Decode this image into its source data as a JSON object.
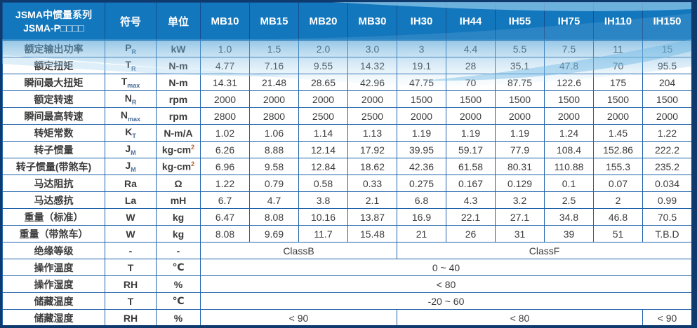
{
  "colors": {
    "header_bg": "#1377bd",
    "grid_line": "#1e62a9",
    "outer_border": "#0e3a6d",
    "header_text": "#ffffff",
    "body_text": "#3b3b3b",
    "wave_accent": "#7cbfe4"
  },
  "table": {
    "header": {
      "title_line1": "JSMA中惯量系列",
      "title_line2": "JSMA-P□□□□",
      "symbol": "符号",
      "unit": "单位",
      "models": [
        "MB10",
        "MB15",
        "MB20",
        "MB30",
        "IH30",
        "IH44",
        "IH55",
        "IH75",
        "IH110",
        "IH150"
      ]
    },
    "rows": [
      {
        "label": "额定输出功率",
        "sym": {
          "main": "P",
          "sub": "R"
        },
        "unit": "kW",
        "values": [
          "1.0",
          "1.5",
          "2.0",
          "3.0",
          "3",
          "4.4",
          "5.5",
          "7.5",
          "11",
          "15"
        ]
      },
      {
        "label": "额定扭矩",
        "sym": {
          "main": "T",
          "sub": "R"
        },
        "unit": "N-m",
        "values": [
          "4.77",
          "7.16",
          "9.55",
          "14.32",
          "19.1",
          "28",
          "35.1",
          "47.8",
          "70",
          "95.5"
        ]
      },
      {
        "label": "瞬间最大扭矩",
        "sym": {
          "main": "T",
          "sub": "max"
        },
        "unit": "N-m",
        "values": [
          "14.31",
          "21.48",
          "28.65",
          "42.96",
          "47.75",
          "70",
          "87.75",
          "122.6",
          "175",
          "204"
        ]
      },
      {
        "label": "额定转速",
        "sym": {
          "main": "N",
          "sub": "R"
        },
        "unit": "rpm",
        "values": [
          "2000",
          "2000",
          "2000",
          "2000",
          "1500",
          "1500",
          "1500",
          "1500",
          "1500",
          "1500"
        ]
      },
      {
        "label": "瞬间最高转速",
        "sym": {
          "main": "N",
          "sub": "max"
        },
        "unit": "rpm",
        "values": [
          "2800",
          "2800",
          "2500",
          "2500",
          "2000",
          "2000",
          "2000",
          "2000",
          "2000",
          "2000"
        ]
      },
      {
        "label": "转矩常数",
        "sym": {
          "main": "K",
          "sub": "T"
        },
        "unit": "N-m/A",
        "values": [
          "1.02",
          "1.06",
          "1.14",
          "1.13",
          "1.19",
          "1.19",
          "1.19",
          "1.24",
          "1.45",
          "1.22"
        ]
      },
      {
        "label": "转子惯量",
        "sym": {
          "main": "J",
          "sub": "M"
        },
        "unit": "kg-cm²",
        "values": [
          "6.26",
          "8.88",
          "12.14",
          "17.92",
          "39.95",
          "59.17",
          "77.9",
          "108.4",
          "152.86",
          "222.2"
        ]
      },
      {
        "label": "转子惯量(带煞车)",
        "sym": {
          "main": "J",
          "sub": "M"
        },
        "unit": "kg-cm²",
        "values": [
          "6.96",
          "9.58",
          "12.84",
          "18.62",
          "42.36",
          "61.58",
          "80.31",
          "110.88",
          "155.3",
          "235.2"
        ]
      },
      {
        "label": "马达阻抗",
        "sym": {
          "main": "Ra",
          "sub": ""
        },
        "unit": "Ω",
        "values": [
          "1.22",
          "0.79",
          "0.58",
          "0.33",
          "0.275",
          "0.167",
          "0.129",
          "0.1",
          "0.07",
          "0.034"
        ]
      },
      {
        "label": "马达感抗",
        "sym": {
          "main": "La",
          "sub": ""
        },
        "unit": "mH",
        "values": [
          "6.7",
          "4.7",
          "3.8",
          "2.1",
          "6.8",
          "4.3",
          "3.2",
          "2.5",
          "2",
          "0.99"
        ]
      },
      {
        "label": "重量（标准）",
        "sym": {
          "main": "W",
          "sub": ""
        },
        "unit": "kg",
        "values": [
          "6.47",
          "8.08",
          "10.16",
          "13.87",
          "16.9",
          "22.1",
          "27.1",
          "34.8",
          "46.8",
          "70.5"
        ]
      },
      {
        "label": "重量（带煞车）",
        "sym": {
          "main": "W",
          "sub": ""
        },
        "unit": "kg",
        "values": [
          "8.08",
          "9.69",
          "11.7",
          "15.48",
          "21",
          "26",
          "31",
          "39",
          "51",
          "T.B.D"
        ]
      },
      {
        "label": "绝缘等级",
        "sym": {
          "main": "-",
          "sub": ""
        },
        "unit": "-",
        "spans": [
          {
            "text": "ClassB",
            "cols": 4
          },
          {
            "text": "ClassF",
            "cols": 6
          }
        ]
      },
      {
        "label": "操作温度",
        "sym": {
          "main": "T",
          "sub": ""
        },
        "unit": "℃",
        "spans": [
          {
            "text": "0 ~ 40",
            "cols": 10
          }
        ]
      },
      {
        "label": "操作湿度",
        "sym": {
          "main": "RH",
          "sub": ""
        },
        "unit": "%",
        "spans": [
          {
            "text": "< 80",
            "cols": 10
          }
        ]
      },
      {
        "label": "储藏温度",
        "sym": {
          "main": "T",
          "sub": ""
        },
        "unit": "℃",
        "spans": [
          {
            "text": "-20 ~ 60",
            "cols": 10
          }
        ]
      },
      {
        "label": "储藏湿度",
        "sym": {
          "main": "RH",
          "sub": ""
        },
        "unit": "%",
        "spans": [
          {
            "text": "< 90",
            "cols": 4
          },
          {
            "text": "< 80",
            "cols": 5
          },
          {
            "text": "< 90",
            "cols": 1
          }
        ]
      }
    ]
  }
}
